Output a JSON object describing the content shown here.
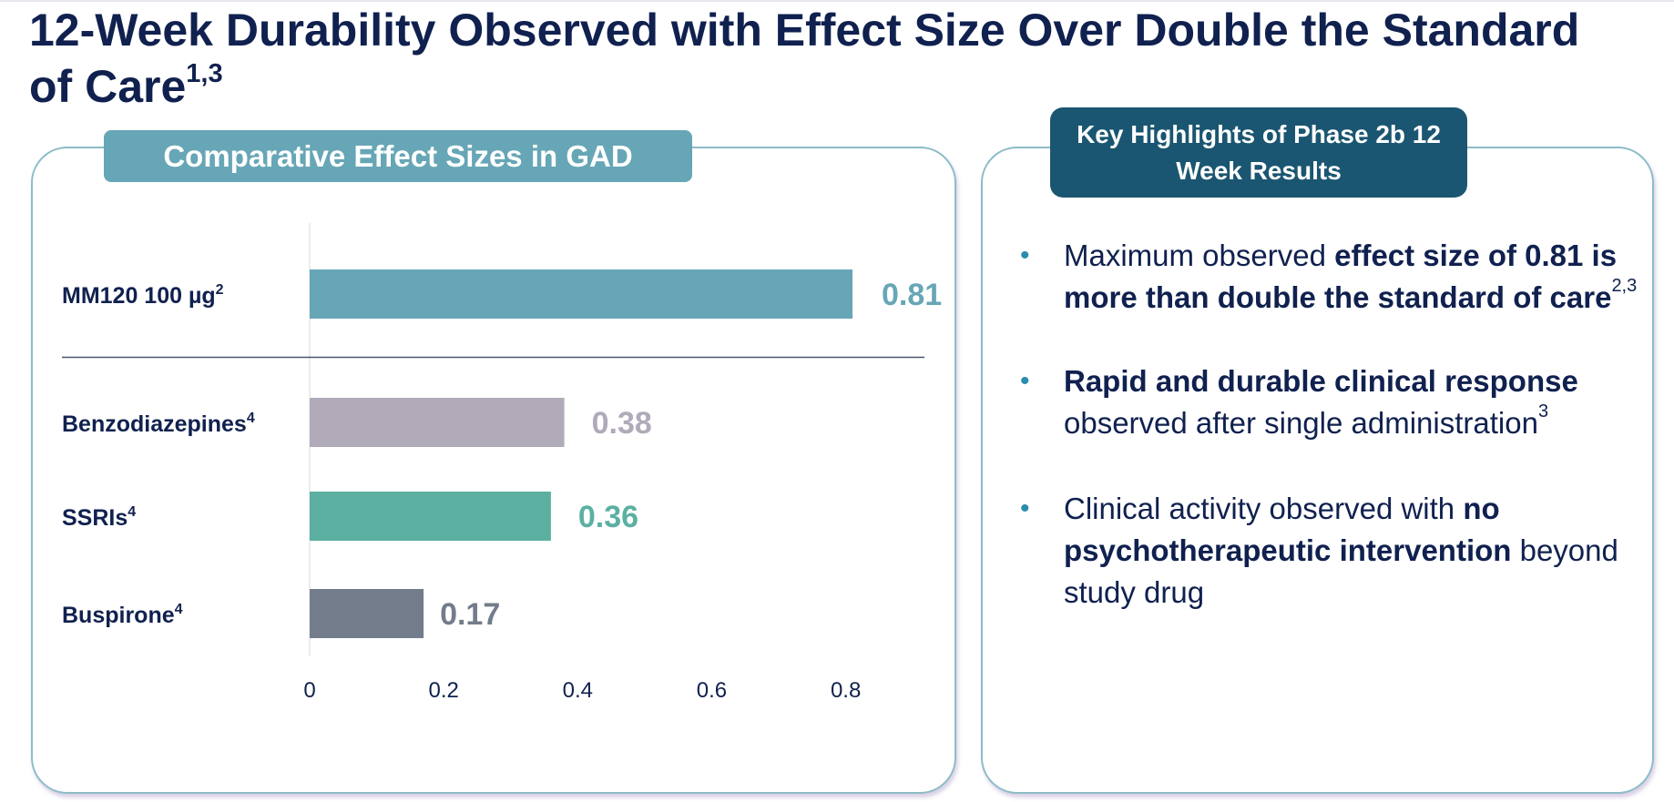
{
  "page": {
    "title": "12-Week Durability Observed with Effect Size Over Double the Standard of Care",
    "title_sup": "1,3"
  },
  "left_panel": {
    "tab_title": "Comparative Effect Sizes in GAD"
  },
  "right_panel": {
    "tab_title": "Key Highlights of Phase 2b 12 Week Results",
    "highlights": [
      {
        "text_1": "Maximum observed ",
        "bold_1": "effect size of 0.81 is more than double the standard of care",
        "sup": "2,3"
      },
      {
        "bold_1": "Rapid and durable clinical response",
        "text_1": " observed after single administration",
        "sup": "3"
      },
      {
        "text_1": "Clinical activity observed with ",
        "bold_1": "no psychotherapeutic intervention",
        "text_2": " beyond study drug"
      }
    ]
  },
  "chart_data": {
    "type": "bar",
    "orientation": "horizontal",
    "categories": [
      "MM120 100 µg",
      "Benzodiazepines",
      "SSRIs",
      "Buspirone"
    ],
    "category_sups": [
      "2",
      "4",
      "4",
      "4"
    ],
    "values": [
      0.81,
      0.38,
      0.36,
      0.17
    ],
    "value_labels": [
      "0.81",
      "0.38",
      "0.36",
      "0.17"
    ],
    "colors": [
      "#67a6b6",
      "#b0aab9",
      "#5bb0a2",
      "#737c8b"
    ],
    "label_colors": [
      "#67a6b6",
      "#b0aab9",
      "#5bb0a2",
      "#737c8b"
    ],
    "xlim": [
      0,
      0.95
    ],
    "xticks": [
      "0",
      "0.2",
      "0.4",
      "0.6",
      "0.8"
    ],
    "xtick_values": [
      0,
      0.2,
      0.4,
      0.6,
      0.8
    ],
    "grid": false,
    "separator_after": 0
  }
}
